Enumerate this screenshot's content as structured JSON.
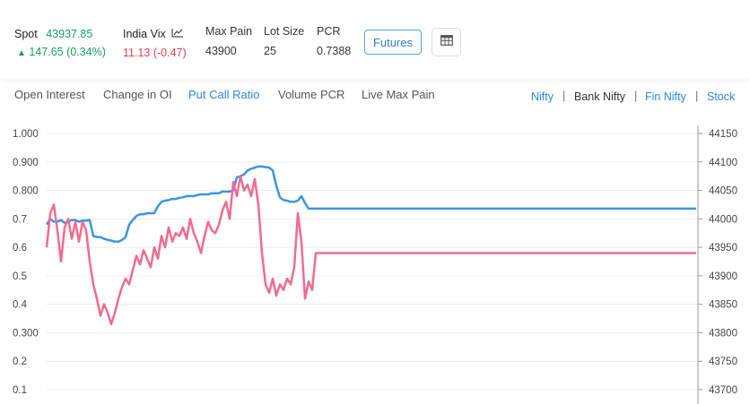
{
  "header": {
    "spot_label": "Spot",
    "spot_value": "43937.85",
    "spot_change": "147.65 (0.34%)",
    "vix_label": "India Vix",
    "vix_icon": "line-chart-icon",
    "vix_value": "11.13 (-0.47)",
    "maxpain_label": "Max Pain",
    "maxpain_value": "43900",
    "lot_label": "Lot Size",
    "lot_value": "25",
    "pcr_label": "PCR",
    "pcr_value": "0.7388",
    "futures_button": "Futures",
    "table_icon": "table-icon"
  },
  "tabs": [
    "Open Interest",
    "Change in OI",
    "Put Call Ratio",
    "Volume PCR",
    "Live Max Pain"
  ],
  "active_tab": "Put Call Ratio",
  "indices": [
    "Nifty",
    "Bank Nifty",
    "Fin Nifty",
    "Stock"
  ],
  "selected_index": "Bank Nifty",
  "colors": {
    "pcr_line": "#f06b90",
    "spot_line": "#3a95e0",
    "accent": "#2c87dd",
    "green": "#1aa05a",
    "red": "#e0404a"
  },
  "chart_data": {
    "type": "line",
    "left_axis": {
      "ticks": [
        "1.000",
        "0.900",
        "0.800",
        "0.7",
        "0.6",
        "0.5",
        "0.4",
        "0.300",
        "0.2",
        "0.1"
      ],
      "range": [
        0.1,
        1.0
      ]
    },
    "right_axis": {
      "ticks": [
        "44150",
        "44100",
        "44050",
        "44000",
        "43950",
        "43900",
        "43850",
        "43800",
        "43750",
        "43700"
      ],
      "range": [
        43700,
        44150
      ]
    },
    "series": [
      {
        "axis": "left",
        "color": "#f06b90",
        "values": [
          0.6,
          0.72,
          0.75,
          0.66,
          0.55,
          0.67,
          0.7,
          0.63,
          0.69,
          0.62,
          0.69,
          0.66,
          0.55,
          0.47,
          0.42,
          0.36,
          0.4,
          0.37,
          0.33,
          0.37,
          0.42,
          0.46,
          0.49,
          0.47,
          0.52,
          0.57,
          0.54,
          0.59,
          0.56,
          0.53,
          0.6,
          0.56,
          0.64,
          0.6,
          0.67,
          0.62,
          0.65,
          0.64,
          0.67,
          0.63,
          0.7,
          0.65,
          0.62,
          0.58,
          0.64,
          0.69,
          0.66,
          0.65,
          0.68,
          0.73,
          0.76,
          0.7,
          0.83,
          0.78,
          0.85,
          0.8,
          0.82,
          0.78,
          0.84,
          0.75,
          0.58,
          0.47,
          0.44,
          0.49,
          0.43,
          0.47,
          0.45,
          0.49,
          0.47,
          0.53,
          0.72,
          0.62,
          0.42,
          0.48,
          0.45,
          0.58
        ],
        "step": 4,
        "flat_after": {
          "value": 0.58,
          "until": 776
        }
      },
      {
        "axis": "right",
        "color": "#3a95e0",
        "values": [
          43990,
          44000,
          43995,
          43995,
          43998,
          43993,
          43995,
          43998,
          43998,
          43995,
          43997,
          43997,
          43998,
          43970,
          43968,
          43968,
          43965,
          43963,
          43962,
          43960,
          43960,
          43963,
          43968,
          43990,
          43998,
          44005,
          44008,
          44008,
          44010,
          44010,
          44010,
          44022,
          44030,
          44032,
          44033,
          44035,
          44035,
          44037,
          44038,
          44040,
          44040,
          44040,
          44042,
          44043,
          44043,
          44043,
          44045,
          44045,
          44045,
          44048,
          44048,
          44048,
          44050,
          44073,
          44075,
          44078,
          44085,
          44088,
          44090,
          44092,
          44092,
          44091,
          44090,
          44085,
          44058,
          44038,
          44033,
          44032,
          44030,
          44030,
          44032,
          44040,
          44028,
          44018,
          44018,
          44018
        ],
        "step": 4,
        "flat_after": {
          "value": 44018,
          "until": 776
        }
      }
    ]
  }
}
